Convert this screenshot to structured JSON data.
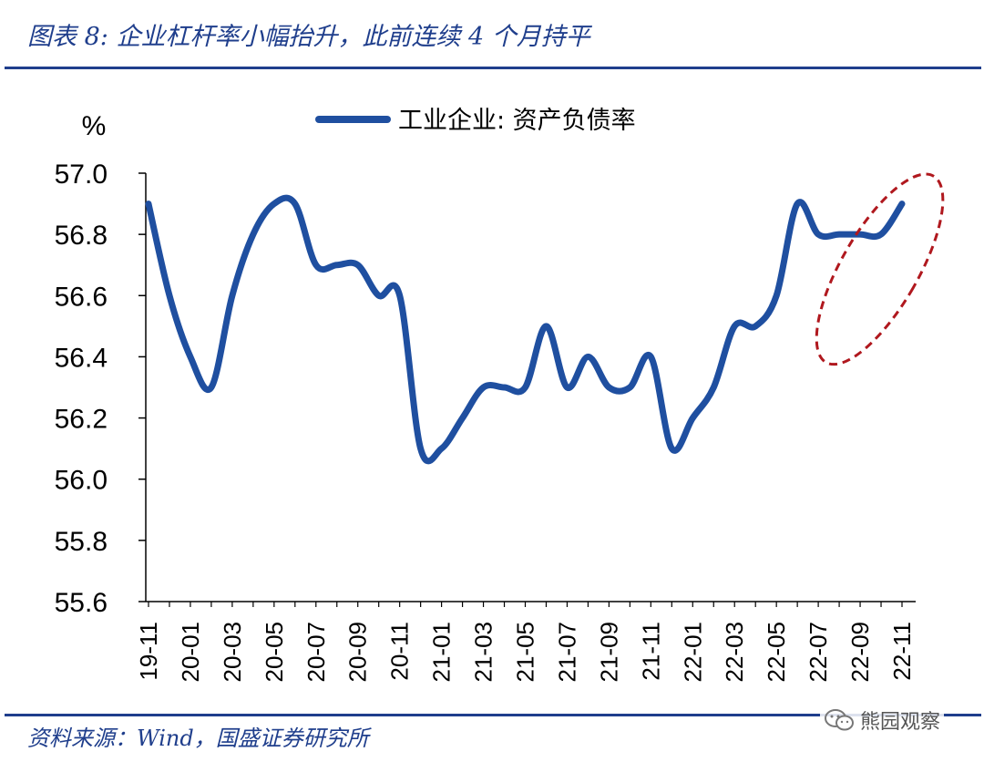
{
  "header": {
    "title": "图表 8: 企业杠杆率小幅抬升，此前连续 4 个月持平"
  },
  "footer": {
    "source": "资料来源：Wind，国盛证券研究所",
    "watermark": "熊园观察"
  },
  "colors": {
    "brand_blue": "#1f3e8c",
    "series_blue": "#1f4fa0",
    "highlight_red": "#b0181e"
  },
  "chart_data": {
    "type": "line",
    "title": "",
    "ylabel": "%",
    "xlabel": "",
    "ylim": [
      55.6,
      57.0
    ],
    "yticks": [
      "55.6",
      "55.8",
      "56.0",
      "56.2",
      "56.4",
      "56.6",
      "56.8",
      "57.0"
    ],
    "ytick_values": [
      55.6,
      55.8,
      56.0,
      56.2,
      56.4,
      56.6,
      56.8,
      57.0
    ],
    "x": [
      "19-11",
      "19-12",
      "20-01",
      "20-02",
      "20-03",
      "20-04",
      "20-05",
      "20-06",
      "20-07",
      "20-08",
      "20-09",
      "20-10",
      "20-11",
      "20-12",
      "21-01",
      "21-02",
      "21-03",
      "21-04",
      "21-05",
      "21-06",
      "21-07",
      "21-08",
      "21-09",
      "21-10",
      "21-11",
      "21-12",
      "22-01",
      "22-02",
      "22-03",
      "22-04",
      "22-05",
      "22-06",
      "22-07",
      "22-08",
      "22-09",
      "22-10",
      "22-11"
    ],
    "xtick_labels": [
      "19-11",
      "20-01",
      "20-03",
      "20-05",
      "20-07",
      "20-09",
      "20-11",
      "21-01",
      "21-03",
      "21-05",
      "21-07",
      "21-09",
      "21-11",
      "22-01",
      "22-03",
      "22-05",
      "22-07",
      "22-09",
      "22-11"
    ],
    "series": [
      {
        "name": "工业企业: 资产负债率",
        "values": [
          56.9,
          56.6,
          56.4,
          56.3,
          56.6,
          56.8,
          56.9,
          56.9,
          56.7,
          56.7,
          56.7,
          56.6,
          56.6,
          56.1,
          56.1,
          56.2,
          56.3,
          56.3,
          56.3,
          56.5,
          56.3,
          56.4,
          56.3,
          56.3,
          56.4,
          56.1,
          56.2,
          56.3,
          56.5,
          56.5,
          56.6,
          56.9,
          56.8,
          56.8,
          56.8,
          56.8,
          56.9
        ]
      }
    ],
    "legend": {
      "position": "top-center"
    },
    "grid": false,
    "annotation": {
      "type": "dashed-ellipse",
      "highlights": [
        "22-08",
        "22-09",
        "22-10",
        "22-11"
      ]
    }
  }
}
